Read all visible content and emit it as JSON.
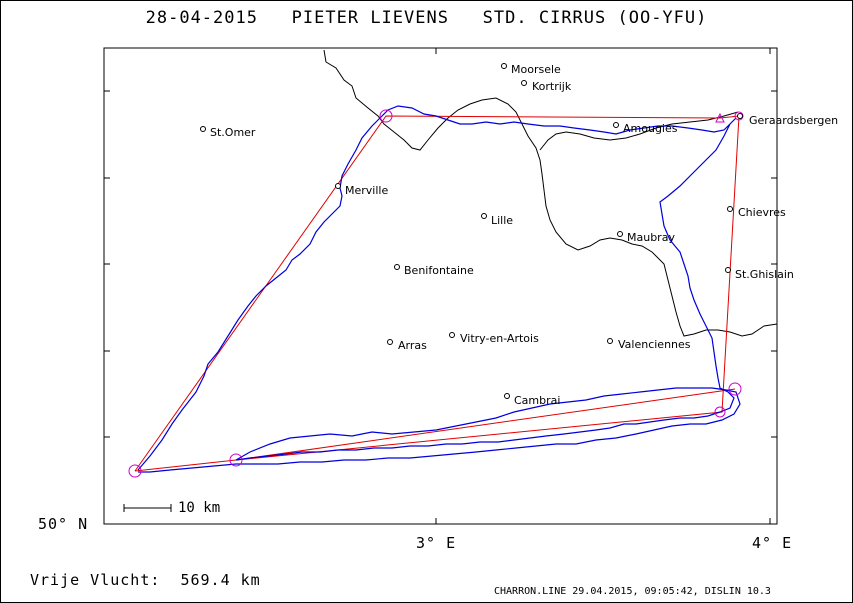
{
  "title": "28-04-2015   PIETER LIEVENS   STD. CIRRUS (OO-YFU)",
  "distance_label": "Vrije Vlucht:",
  "distance_value": "569.4 km",
  "footer": "CHARRON.LINE 29.04.2015, 09:05:42, DISLIN 10.3",
  "scale_bar_label": "10 km",
  "axis": {
    "lat_label": "50° N",
    "lon_labels": [
      "3° E",
      "4° E"
    ]
  },
  "colors": {
    "task_line": "#e00000",
    "track": "#0000dd",
    "turnpoint": "#cc00cc",
    "border": "#000000"
  },
  "places": [
    {
      "name": "Moorsele"
    },
    {
      "name": "Kortrijk"
    },
    {
      "name": "St.Omer"
    },
    {
      "name": "Geraardsbergen"
    },
    {
      "name": "Amougies"
    },
    {
      "name": "Merville"
    },
    {
      "name": "Chievres"
    },
    {
      "name": "Lille"
    },
    {
      "name": "Maubray"
    },
    {
      "name": "Benifontaine"
    },
    {
      "name": "St.Ghislain"
    },
    {
      "name": "Vitry-en-Artois"
    },
    {
      "name": "Arras"
    },
    {
      "name": "Valenciennes"
    },
    {
      "name": "Cambrai"
    }
  ]
}
